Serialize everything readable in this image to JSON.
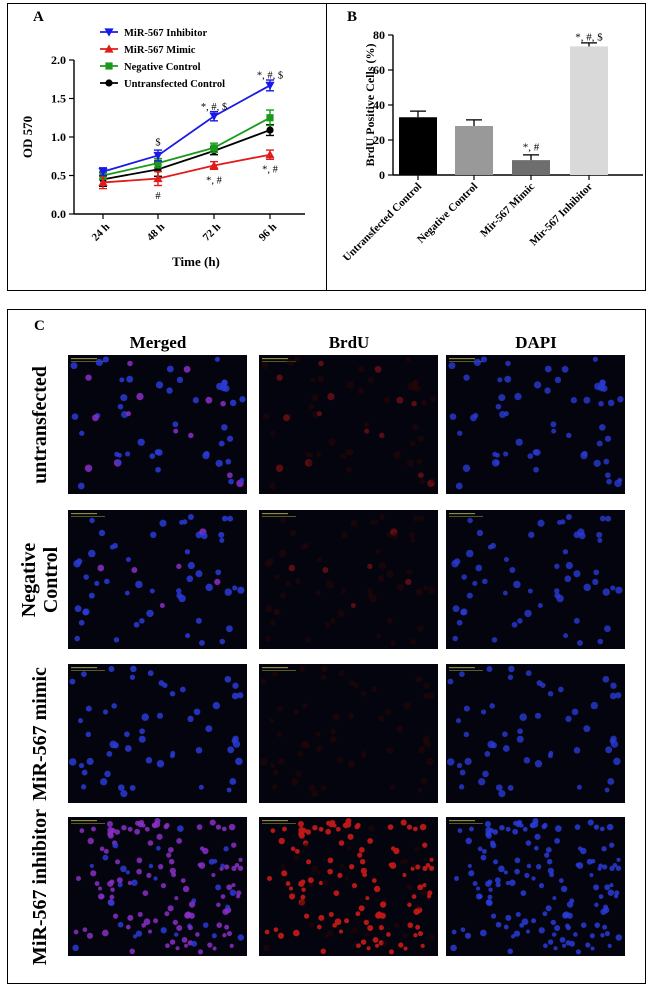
{
  "figure": {
    "panel_labels": [
      "A",
      "B",
      "C"
    ]
  },
  "chart_data": [
    {
      "type": "line",
      "panel": "A",
      "title": "",
      "xlabel": "Time (h)",
      "ylabel": "OD 570",
      "categories": [
        "24 h",
        "48 h",
        "72 h",
        "96 h"
      ],
      "ylim": [
        0.0,
        2.0
      ],
      "yticks": [
        "0.0",
        "0.5",
        "1.0",
        "1.5",
        "2.0"
      ],
      "legend_position": "top-left",
      "series": [
        {
          "name": "MiR-567 Inhibitor",
          "color": "#1a1ae6",
          "marker": "triangle-down",
          "values": [
            0.55,
            0.76,
            1.27,
            1.67
          ],
          "errors": [
            0.05,
            0.07,
            0.06,
            0.07
          ]
        },
        {
          "name": "MiR-567 Mimic",
          "color": "#e01c1c",
          "marker": "triangle-up",
          "values": [
            0.41,
            0.46,
            0.63,
            0.77
          ],
          "errors": [
            0.08,
            0.09,
            0.05,
            0.06
          ]
        },
        {
          "name": "Negative Control",
          "color": "#1a9a1a",
          "marker": "square",
          "values": [
            0.5,
            0.66,
            0.86,
            1.25
          ],
          "errors": [
            0.05,
            0.06,
            0.06,
            0.1
          ]
        },
        {
          "name": "Untransfected Control",
          "color": "#000000",
          "marker": "circle",
          "values": [
            0.45,
            0.58,
            0.82,
            1.09
          ],
          "errors": [
            0.09,
            0.09,
            0.05,
            0.07
          ]
        }
      ],
      "annotations": [
        {
          "text": "$",
          "category": "48 h",
          "y": 0.94
        },
        {
          "text": "#",
          "category": "48 h",
          "y": 0.25
        },
        {
          "text": "*, #, $",
          "category": "72 h",
          "y": 1.4
        },
        {
          "text": "*, #",
          "category": "72 h",
          "y": 0.45
        },
        {
          "text": "*, #, $",
          "category": "96 h",
          "y": 1.81
        },
        {
          "text": "*, #",
          "category": "96 h",
          "y": 0.59
        }
      ]
    },
    {
      "type": "bar",
      "panel": "B",
      "title": "",
      "xlabel": "",
      "ylabel": "BrdU Positive Cells (%)",
      "categories": [
        "Untransfected Control",
        "Negative Control",
        "Mir-567 Mimic",
        "Mir-567 Inhibitor"
      ],
      "values": [
        33,
        28,
        8.5,
        73.5
      ],
      "errors": [
        3.5,
        3.5,
        3.0,
        2.0
      ],
      "colors": [
        "#000000",
        "#999999",
        "#6e6e6e",
        "#d9d9d9"
      ],
      "ylim": [
        0,
        80
      ],
      "yticks": [
        "0",
        "20",
        "40",
        "60",
        "80"
      ],
      "annotations": [
        {
          "text": "*, #",
          "category": "Mir-567 Mimic",
          "y": 14
        },
        {
          "text": "*, #, $",
          "category": "Mir-567 Inhibitor",
          "y": 77
        }
      ]
    }
  ],
  "micrographs": {
    "columns": [
      "Merged",
      "BrdU",
      "DAPI"
    ],
    "rows": [
      {
        "label_lines": [
          "untransfected"
        ],
        "intensity": "low"
      },
      {
        "label_lines": [
          "Negative",
          "Control"
        ],
        "intensity": "low"
      },
      {
        "label_lines": [
          "MiR-567 mimic"
        ],
        "intensity": "very-low"
      },
      {
        "label_lines": [
          "MiR-567 inhibitor"
        ],
        "intensity": "high"
      }
    ],
    "colors": {
      "dapi": "#2a3bd6",
      "brdu": "#c01818",
      "merged": "#8a2fc4",
      "background": "#04040e"
    }
  }
}
